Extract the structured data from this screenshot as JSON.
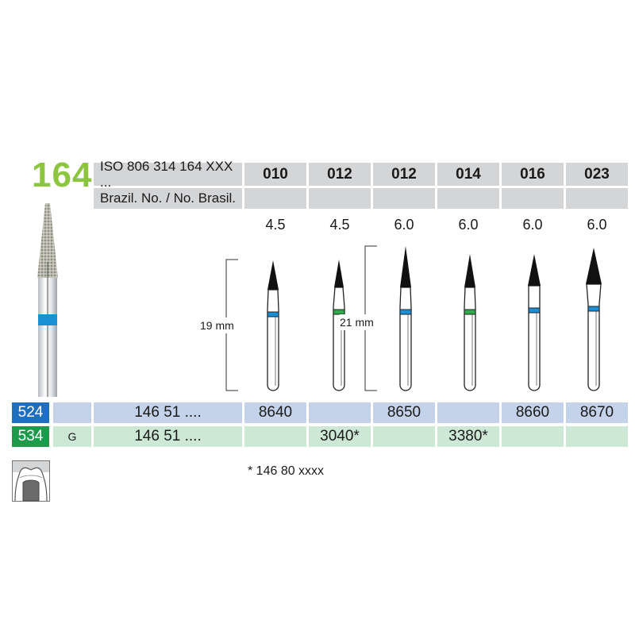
{
  "figure_number": "164",
  "header": {
    "iso_label": "ISO 806 314 164 XXX ...",
    "brazil_label": "Brazil. No. / No. Brasil.",
    "sizes": [
      "010",
      "012",
      "012",
      "014",
      "016",
      "023"
    ],
    "brazil_values": [
      "",
      "",
      "",
      "",
      "",
      ""
    ],
    "lengths": [
      "4.5",
      "4.5",
      "6.0",
      "6.0",
      "6.0",
      "6.0"
    ]
  },
  "burs": [
    {
      "band_color": "#1a8fd6"
    },
    {
      "band_color": "#2eaa4a"
    },
    {
      "band_color": "#1a8fd6"
    },
    {
      "band_color": "#2eaa4a"
    },
    {
      "band_color": "#1a8fd6"
    },
    {
      "band_color": "#1a8fd6"
    }
  ],
  "dimensions": {
    "short": "19 mm",
    "long": "21 mm"
  },
  "rows": [
    {
      "code": "524",
      "code_color": "#1f6fbf",
      "grit": "",
      "prefix": "146 51 ....",
      "values": [
        "8640",
        "",
        "8650",
        "",
        "8660",
        "8670"
      ]
    },
    {
      "code": "534",
      "code_color": "#1e9a4b",
      "grit": "G",
      "prefix": "146 51 ....",
      "values": [
        "",
        "3040*",
        "",
        "3380*",
        "",
        ""
      ]
    }
  ],
  "footnote": "*  146 80 xxxx",
  "icons": {
    "tooth": "tooth-crown-icon",
    "product_photo": "diamond-bur-photo"
  }
}
